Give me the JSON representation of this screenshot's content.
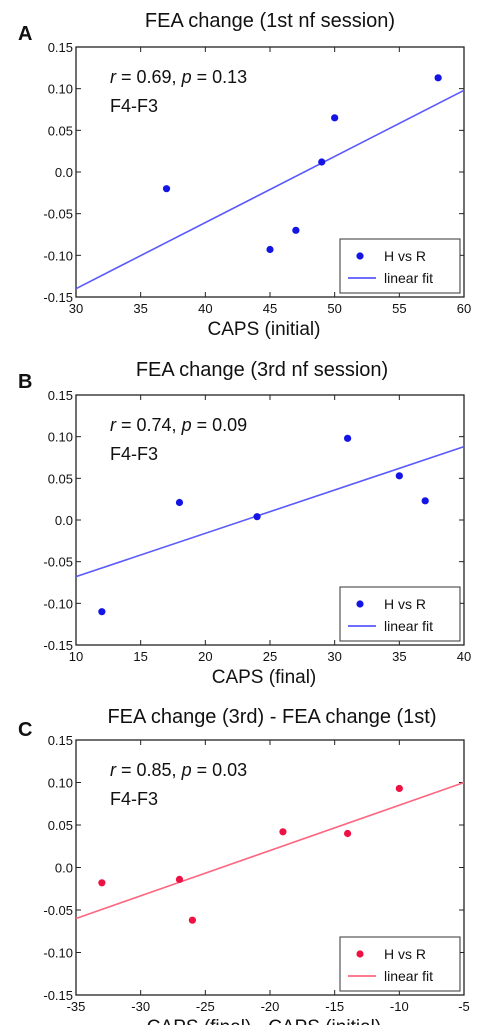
{
  "chart_data": [
    {
      "type": "scatter",
      "panel_label": "A",
      "title": "FEA change (1st nf session)",
      "xlabel": "CAPS (initial)",
      "ylabel": "",
      "xlim": [
        30,
        60
      ],
      "ylim": [
        -0.15,
        0.15
      ],
      "xticks": [
        30,
        35,
        40,
        45,
        50,
        55,
        60
      ],
      "xtick_labels": [
        "30",
        "35",
        "40",
        "45",
        "50",
        "55",
        "60"
      ],
      "yticks": [
        0.15,
        0.1,
        0.05,
        0.0,
        -0.05,
        -0.1,
        -0.15
      ],
      "ytick_labels": [
        "0.15",
        "0.10",
        "0.05",
        "0.0",
        "-0.05",
        "-0.10",
        "-0.15"
      ],
      "annotation_stat": "r = 0.69, p = 0.13",
      "annotation_channel": "F4-F3",
      "legend_position": "bottom-right",
      "series": [
        {
          "name": "H vs R",
          "kind": "points",
          "color": "#1414e6",
          "x": [
            37,
            45,
            47,
            49,
            50,
            58
          ],
          "y": [
            -0.02,
            -0.093,
            -0.07,
            0.012,
            0.065,
            0.113
          ]
        },
        {
          "name": "linear fit",
          "kind": "line",
          "color": "#5a5aff",
          "x": [
            30,
            60
          ],
          "y": [
            -0.14,
            0.098
          ]
        }
      ]
    },
    {
      "type": "scatter",
      "panel_label": "B",
      "title": "FEA change (3rd nf session)",
      "xlabel": "CAPS (final)",
      "ylabel": "",
      "xlim": [
        10,
        40
      ],
      "ylim": [
        -0.15,
        0.15
      ],
      "xticks": [
        10,
        15,
        20,
        25,
        30,
        35,
        40
      ],
      "xtick_labels": [
        "10",
        "15",
        "20",
        "25",
        "30",
        "35",
        "40"
      ],
      "yticks": [
        0.15,
        0.1,
        0.05,
        0.0,
        -0.05,
        -0.1,
        -0.15
      ],
      "ytick_labels": [
        "0.15",
        "0.10",
        "0.05",
        "0.0",
        "-0.05",
        "-0.10",
        "-0.15"
      ],
      "annotation_stat": "r = 0.74, p = 0.09",
      "annotation_channel": "F4-F3",
      "legend_position": "bottom-right",
      "series": [
        {
          "name": "H vs R",
          "kind": "points",
          "color": "#1414e6",
          "x": [
            12,
            18,
            24,
            31,
            35,
            37
          ],
          "y": [
            -0.11,
            0.021,
            0.004,
            0.098,
            0.053,
            0.023
          ]
        },
        {
          "name": "linear fit",
          "kind": "line",
          "color": "#5a5aff",
          "x": [
            10,
            40
          ],
          "y": [
            -0.068,
            0.088
          ]
        }
      ]
    },
    {
      "type": "scatter",
      "panel_label": "C",
      "title": "FEA change (3rd) - FEA change (1st)",
      "xlabel": "CAPS (final) - CAPS (initial)",
      "ylabel": "",
      "xlim": [
        -35,
        -5
      ],
      "ylim": [
        -0.15,
        0.15
      ],
      "xticks": [
        -35,
        -30,
        -25,
        -20,
        -15,
        -10,
        -5
      ],
      "xtick_labels": [
        "-35",
        "-30",
        "-25",
        "-20",
        "-15",
        "-10",
        "-5"
      ],
      "yticks": [
        0.15,
        0.1,
        0.05,
        0.0,
        -0.05,
        -0.1,
        -0.15
      ],
      "ytick_labels": [
        "0.15",
        "0.10",
        "0.05",
        "0.0",
        "-0.05",
        "-0.10",
        "-0.15"
      ],
      "annotation_stat": "r = 0.85, p = 0.03",
      "annotation_channel": "F4-F3",
      "legend_position": "bottom-right",
      "series": [
        {
          "name": "H vs R",
          "kind": "points",
          "color": "#ee1144",
          "x": [
            -33,
            -27,
            -26,
            -19,
            -14,
            -10
          ],
          "y": [
            -0.018,
            -0.014,
            -0.062,
            0.042,
            0.04,
            0.093
          ]
        },
        {
          "name": "linear fit",
          "kind": "line",
          "color": "#ff6680",
          "x": [
            -35,
            -5
          ],
          "y": [
            -0.06,
            0.1
          ]
        }
      ]
    }
  ]
}
